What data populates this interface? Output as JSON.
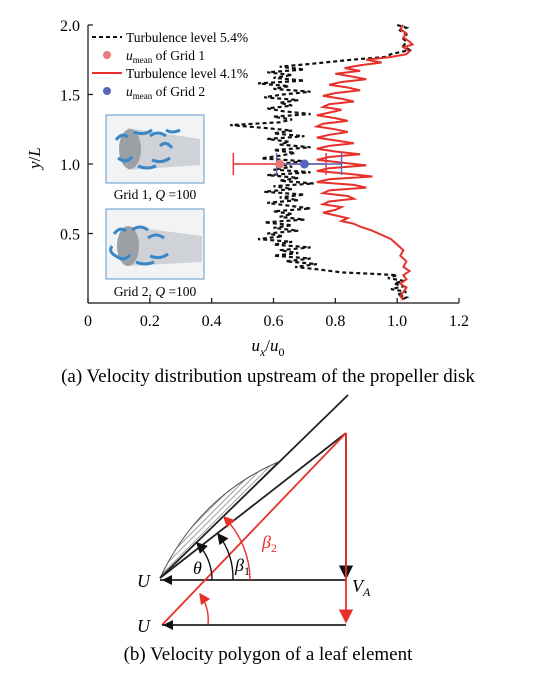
{
  "figure_a": {
    "caption": "(a) Velocity distribution upstream of the propeller disk",
    "chart_data": {
      "type": "line",
      "xlabel_main": "u",
      "xlabel_sub1": "x",
      "xlabel_sep": "/",
      "xlabel_main2": "u",
      "xlabel_sub2": "0",
      "ylabel_main": "y",
      "ylabel_sep": "/",
      "ylabel_main2": "L",
      "xlim": [
        0,
        1.2
      ],
      "ylim": [
        0,
        2.0
      ],
      "x_ticks": [
        "0",
        "0.2",
        "0.4",
        "0.6",
        "0.8",
        "1.0",
        "1.2"
      ],
      "y_ticks": [
        "0.5",
        "1.0",
        "1.5",
        "2.0"
      ],
      "legend_position": "top-left",
      "series": [
        {
          "name": "Turbulence level 5.4%",
          "style": "dashed",
          "color": "#111111",
          "points": [
            [
              1.0,
              2.0
            ],
            [
              1.03,
              1.98
            ],
            [
              1.01,
              1.96
            ],
            [
              1.03,
              1.93
            ],
            [
              1.02,
              1.9
            ],
            [
              1.03,
              1.88
            ],
            [
              1.02,
              1.85
            ],
            [
              1.04,
              1.82
            ],
            [
              0.98,
              1.79
            ],
            [
              0.96,
              1.77
            ],
            [
              0.85,
              1.75
            ],
            [
              0.72,
              1.72
            ],
            [
              0.62,
              1.7
            ],
            [
              0.7,
              1.68
            ],
            [
              0.58,
              1.66
            ],
            [
              0.66,
              1.64
            ],
            [
              0.6,
              1.62
            ],
            [
              0.7,
              1.6
            ],
            [
              0.55,
              1.58
            ],
            [
              0.65,
              1.56
            ],
            [
              0.6,
              1.54
            ],
            [
              0.72,
              1.52
            ],
            [
              0.63,
              1.5
            ],
            [
              0.57,
              1.48
            ],
            [
              0.68,
              1.46
            ],
            [
              0.62,
              1.44
            ],
            [
              0.66,
              1.42
            ],
            [
              0.58,
              1.4
            ],
            [
              0.63,
              1.38
            ],
            [
              0.72,
              1.36
            ],
            [
              0.6,
              1.34
            ],
            [
              0.66,
              1.32
            ],
            [
              0.62,
              1.3
            ],
            [
              0.46,
              1.28
            ],
            [
              0.57,
              1.26
            ],
            [
              0.66,
              1.24
            ],
            [
              0.6,
              1.22
            ],
            [
              0.7,
              1.2
            ],
            [
              0.58,
              1.18
            ],
            [
              0.65,
              1.16
            ],
            [
              0.62,
              1.14
            ],
            [
              0.72,
              1.12
            ],
            [
              0.6,
              1.1
            ],
            [
              0.67,
              1.08
            ],
            [
              0.62,
              1.06
            ],
            [
              0.56,
              1.04
            ],
            [
              0.7,
              1.02
            ],
            [
              0.62,
              1.0
            ],
            [
              0.66,
              0.98
            ],
            [
              0.6,
              0.96
            ],
            [
              0.72,
              0.94
            ],
            [
              0.58,
              0.92
            ],
            [
              0.68,
              0.9
            ],
            [
              0.62,
              0.88
            ],
            [
              0.73,
              0.86
            ],
            [
              0.6,
              0.84
            ],
            [
              0.66,
              0.82
            ],
            [
              0.57,
              0.8
            ],
            [
              0.7,
              0.78
            ],
            [
              0.62,
              0.76
            ],
            [
              0.68,
              0.74
            ],
            [
              0.58,
              0.72
            ],
            [
              0.65,
              0.7
            ],
            [
              0.72,
              0.68
            ],
            [
              0.6,
              0.66
            ],
            [
              0.66,
              0.64
            ],
            [
              0.62,
              0.62
            ],
            [
              0.7,
              0.6
            ],
            [
              0.57,
              0.58
            ],
            [
              0.66,
              0.56
            ],
            [
              0.6,
              0.54
            ],
            [
              0.68,
              0.52
            ],
            [
              0.58,
              0.5
            ],
            [
              0.63,
              0.48
            ],
            [
              0.55,
              0.46
            ],
            [
              0.66,
              0.44
            ],
            [
              0.6,
              0.42
            ],
            [
              0.72,
              0.4
            ],
            [
              0.62,
              0.38
            ],
            [
              0.68,
              0.36
            ],
            [
              0.6,
              0.34
            ],
            [
              0.72,
              0.32
            ],
            [
              0.64,
              0.3
            ],
            [
              0.74,
              0.28
            ],
            [
              0.67,
              0.26
            ],
            [
              0.75,
              0.24
            ],
            [
              0.82,
              0.22
            ],
            [
              0.92,
              0.21
            ],
            [
              1.0,
              0.2
            ],
            [
              0.97,
              0.18
            ],
            [
              1.02,
              0.16
            ],
            [
              0.99,
              0.14
            ],
            [
              1.02,
              0.12
            ],
            [
              0.98,
              0.1
            ],
            [
              1.03,
              0.08
            ],
            [
              1.0,
              0.06
            ],
            [
              1.03,
              0.04
            ],
            [
              1.01,
              0.02
            ]
          ]
        },
        {
          "name": "Turbulence level 4.1%",
          "style": "solid",
          "color": "#e8302b",
          "points": [
            [
              1.02,
              2.0
            ],
            [
              1.01,
              1.97
            ],
            [
              1.03,
              1.94
            ],
            [
              1.02,
              1.91
            ],
            [
              1.04,
              1.88
            ],
            [
              1.05,
              1.86
            ],
            [
              1.02,
              1.84
            ],
            [
              1.04,
              1.81
            ],
            [
              1.03,
              1.79
            ],
            [
              0.98,
              1.77
            ],
            [
              0.9,
              1.75
            ],
            [
              0.95,
              1.73
            ],
            [
              0.88,
              1.71
            ],
            [
              0.83,
              1.69
            ],
            [
              0.88,
              1.67
            ],
            [
              0.8,
              1.65
            ],
            [
              0.85,
              1.63
            ],
            [
              0.9,
              1.61
            ],
            [
              0.82,
              1.59
            ],
            [
              0.78,
              1.57
            ],
            [
              0.84,
              1.55
            ],
            [
              0.88,
              1.53
            ],
            [
              0.8,
              1.51
            ],
            [
              0.76,
              1.49
            ],
            [
              0.82,
              1.47
            ],
            [
              0.86,
              1.45
            ],
            [
              0.78,
              1.43
            ],
            [
              0.76,
              1.41
            ],
            [
              0.82,
              1.39
            ],
            [
              0.78,
              1.37
            ],
            [
              0.74,
              1.35
            ],
            [
              0.8,
              1.33
            ],
            [
              0.84,
              1.31
            ],
            [
              0.76,
              1.29
            ],
            [
              0.74,
              1.27
            ],
            [
              0.8,
              1.25
            ],
            [
              0.84,
              1.23
            ],
            [
              0.78,
              1.21
            ],
            [
              0.74,
              1.19
            ],
            [
              0.8,
              1.17
            ],
            [
              0.86,
              1.15
            ],
            [
              0.78,
              1.13
            ],
            [
              0.74,
              1.11
            ],
            [
              0.8,
              1.09
            ],
            [
              0.88,
              1.07
            ],
            [
              0.78,
              1.05
            ],
            [
              0.74,
              1.03
            ],
            [
              0.82,
              1.01
            ],
            [
              0.9,
              0.99
            ],
            [
              0.78,
              0.97
            ],
            [
              0.74,
              0.95
            ],
            [
              0.84,
              0.93
            ],
            [
              0.92,
              0.91
            ],
            [
              0.78,
              0.89
            ],
            [
              0.74,
              0.87
            ],
            [
              0.86,
              0.85
            ],
            [
              0.9,
              0.83
            ],
            [
              0.78,
              0.81
            ],
            [
              0.76,
              0.79
            ],
            [
              0.84,
              0.77
            ],
            [
              0.86,
              0.75
            ],
            [
              0.78,
              0.73
            ],
            [
              0.76,
              0.71
            ],
            [
              0.82,
              0.69
            ],
            [
              0.8,
              0.67
            ],
            [
              0.76,
              0.65
            ],
            [
              0.8,
              0.63
            ],
            [
              0.84,
              0.61
            ],
            [
              0.82,
              0.59
            ],
            [
              0.86,
              0.57
            ],
            [
              0.88,
              0.55
            ],
            [
              0.92,
              0.52
            ],
            [
              0.95,
              0.49
            ],
            [
              0.98,
              0.46
            ],
            [
              1.0,
              0.42
            ],
            [
              1.02,
              0.38
            ],
            [
              1.01,
              0.34
            ],
            [
              1.03,
              0.3
            ],
            [
              1.02,
              0.26
            ],
            [
              1.04,
              0.23
            ],
            [
              1.02,
              0.2
            ],
            [
              1.03,
              0.17
            ],
            [
              1.01,
              0.14
            ],
            [
              1.03,
              0.11
            ],
            [
              1.02,
              0.08
            ],
            [
              1.01,
              0.05
            ],
            [
              1.02,
              0.02
            ]
          ]
        }
      ],
      "means": [
        {
          "name_main": "u",
          "name_sub": "mean",
          "name_rest": " of Grid 1",
          "x": 0.62,
          "y": 1.0,
          "xerr": [
            0.47,
            0.77
          ],
          "color": "#e87a7a"
        },
        {
          "name_main": "u",
          "name_sub": "mean",
          "name_rest": " of Grid 2",
          "x": 0.7,
          "y": 1.0,
          "xerr": [
            0.61,
            0.82
          ],
          "color": "#5566bb"
        }
      ],
      "insets": [
        {
          "label_pre": "Grid 1, ",
          "label_q": "Q",
          "label_post": " =100"
        },
        {
          "label_pre": "Grid 2, ",
          "label_q": "Q",
          "label_post": " =100"
        }
      ]
    }
  },
  "figure_b": {
    "caption": "(b) Velocity polygon of a leaf element",
    "labels": {
      "u_top": "U",
      "u_bottom": "U",
      "theta": "θ",
      "beta1_main": "β",
      "beta1_sub": "1",
      "beta2_main": "β",
      "beta2_sub": "2",
      "va_main": "V",
      "va_sub": "A"
    }
  }
}
